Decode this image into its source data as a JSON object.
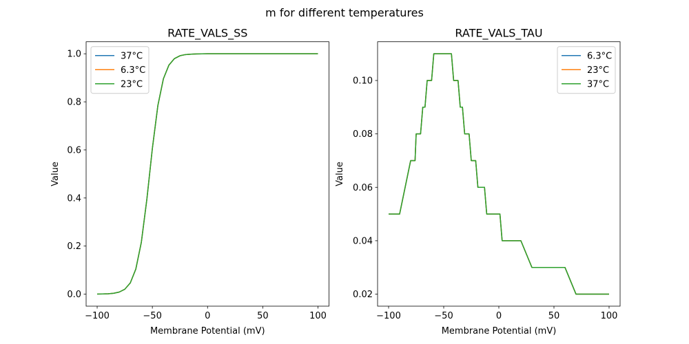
{
  "figure_title": "m for different temperatures",
  "colors": {
    "c0": "#1f77b4",
    "c1": "#ff7f0e",
    "c2": "#2ca02c"
  },
  "chart_data": [
    {
      "type": "line",
      "title": "RATE_VALS_SS",
      "xlabel": "Membrane Potential (mV)",
      "ylabel": "Value",
      "xlim": [
        -110,
        110
      ],
      "ylim": [
        -0.05,
        1.05
      ],
      "xticks": [
        -100,
        -50,
        0,
        50,
        100
      ],
      "xtick_labels": [
        "−100",
        "−50",
        "0",
        "50",
        "100"
      ],
      "yticks": [
        0.0,
        0.2,
        0.4,
        0.6,
        0.8,
        1.0
      ],
      "ytick_labels": [
        "0.0",
        "0.2",
        "0.4",
        "0.6",
        "0.8",
        "1.0"
      ],
      "grid": false,
      "legend_position": "upper-left",
      "x": [
        -100,
        -95,
        -90,
        -85,
        -80,
        -75,
        -70,
        -65,
        -60,
        -55,
        -50,
        -45,
        -40,
        -35,
        -30,
        -25,
        -20,
        -15,
        -10,
        -5,
        0,
        10,
        20,
        30,
        40,
        50,
        60,
        70,
        80,
        90,
        100
      ],
      "series": [
        {
          "name": "37°C",
          "color": "#1f77b4",
          "values": [
            0.0003,
            0.0007,
            0.0015,
            0.0037,
            0.0087,
            0.0203,
            0.0467,
            0.104,
            0.2153,
            0.394,
            0.606,
            0.785,
            0.896,
            0.953,
            0.98,
            0.9918,
            0.9967,
            0.9985,
            0.9994,
            0.9998,
            1.0,
            1.0,
            1.0,
            1.0,
            1.0,
            1.0,
            1.0,
            1.0,
            1.0,
            1.0,
            1.0
          ]
        },
        {
          "name": "6.3°C",
          "color": "#ff7f0e",
          "values": [
            0.0003,
            0.0007,
            0.0015,
            0.0037,
            0.0087,
            0.0203,
            0.0467,
            0.104,
            0.2153,
            0.394,
            0.606,
            0.785,
            0.896,
            0.953,
            0.98,
            0.9918,
            0.9967,
            0.9985,
            0.9994,
            0.9998,
            1.0,
            1.0,
            1.0,
            1.0,
            1.0,
            1.0,
            1.0,
            1.0,
            1.0,
            1.0,
            1.0
          ]
        },
        {
          "name": "23°C",
          "color": "#2ca02c",
          "values": [
            0.0003,
            0.0007,
            0.0015,
            0.0037,
            0.0087,
            0.0203,
            0.0467,
            0.104,
            0.2153,
            0.394,
            0.606,
            0.785,
            0.896,
            0.953,
            0.98,
            0.9918,
            0.9967,
            0.9985,
            0.9994,
            0.9998,
            1.0,
            1.0,
            1.0,
            1.0,
            1.0,
            1.0,
            1.0,
            1.0,
            1.0,
            1.0,
            1.0
          ]
        }
      ]
    },
    {
      "type": "line",
      "title": "RATE_VALS_TAU",
      "xlabel": "Membrane Potential (mV)",
      "ylabel": "Value",
      "xlim": [
        -110,
        110
      ],
      "ylim": [
        0.0155,
        0.1145
      ],
      "xticks": [
        -100,
        -50,
        0,
        50,
        100
      ],
      "xtick_labels": [
        "−100",
        "−50",
        "0",
        "50",
        "100"
      ],
      "yticks": [
        0.02,
        0.04,
        0.06,
        0.08,
        0.1
      ],
      "ytick_labels": [
        "0.02",
        "0.04",
        "0.06",
        "0.08",
        "0.10"
      ],
      "grid": false,
      "legend_position": "upper-right",
      "x": [
        -100,
        -90,
        -80,
        -76,
        -75,
        -71,
        -69,
        -67,
        -65,
        -61,
        -59,
        -43,
        -41,
        -37,
        -35,
        -33,
        -31,
        -27,
        -25,
        -21,
        -19,
        -13,
        -11,
        1,
        3,
        20,
        30,
        60,
        70,
        100
      ],
      "series": [
        {
          "name": "6.3°C",
          "color": "#1f77b4",
          "values": [
            0.05,
            0.05,
            0.07,
            0.07,
            0.08,
            0.08,
            0.09,
            0.09,
            0.1,
            0.1,
            0.11,
            0.11,
            0.1,
            0.1,
            0.09,
            0.09,
            0.08,
            0.08,
            0.07,
            0.07,
            0.06,
            0.06,
            0.05,
            0.05,
            0.04,
            0.04,
            0.03,
            0.03,
            0.02,
            0.02
          ]
        },
        {
          "name": "23°C",
          "color": "#ff7f0e",
          "values": [
            0.05,
            0.05,
            0.07,
            0.07,
            0.08,
            0.08,
            0.09,
            0.09,
            0.1,
            0.1,
            0.11,
            0.11,
            0.1,
            0.1,
            0.09,
            0.09,
            0.08,
            0.08,
            0.07,
            0.07,
            0.06,
            0.06,
            0.05,
            0.05,
            0.04,
            0.04,
            0.03,
            0.03,
            0.02,
            0.02
          ]
        },
        {
          "name": "37°C",
          "color": "#2ca02c",
          "values": [
            0.05,
            0.05,
            0.07,
            0.07,
            0.08,
            0.08,
            0.09,
            0.09,
            0.1,
            0.1,
            0.11,
            0.11,
            0.1,
            0.1,
            0.09,
            0.09,
            0.08,
            0.08,
            0.07,
            0.07,
            0.06,
            0.06,
            0.05,
            0.05,
            0.04,
            0.04,
            0.03,
            0.03,
            0.02,
            0.02
          ]
        }
      ]
    }
  ]
}
